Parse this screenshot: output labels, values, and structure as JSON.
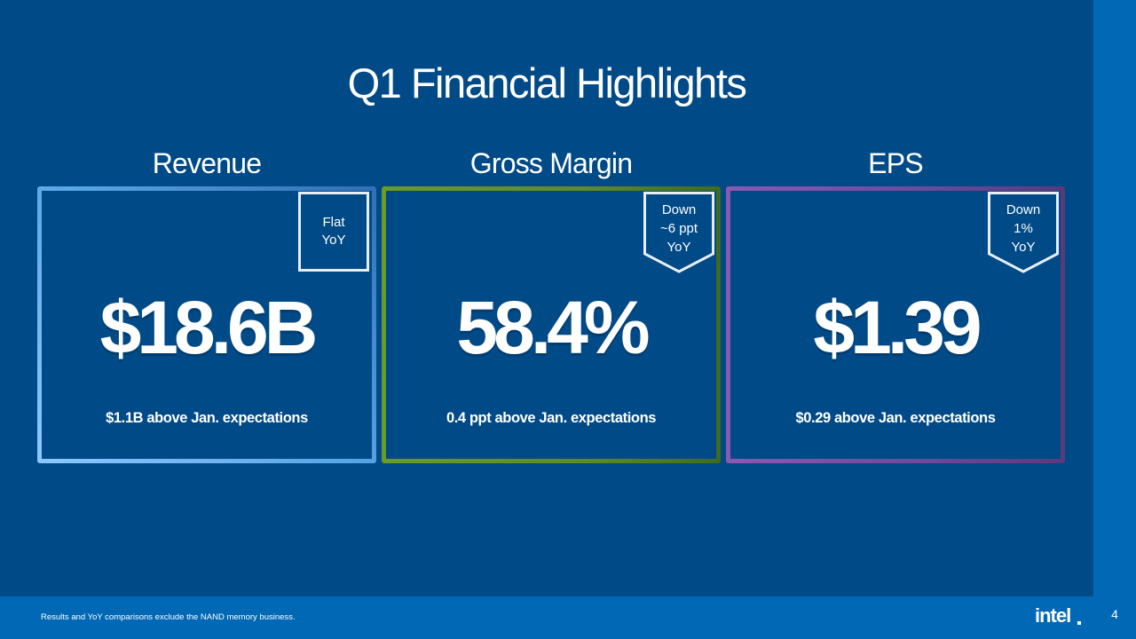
{
  "title": "Q1 Financial Highlights",
  "metrics": [
    {
      "heading": "Revenue",
      "value": "$18.6B",
      "subtitle": "$1.1B above Jan. expectations",
      "badge": [
        "Flat",
        "YoY"
      ],
      "badge_shape": "square",
      "accent_color": "#5aa6e6"
    },
    {
      "heading": "Gross Margin",
      "value": "58.4%",
      "subtitle": "0.4 ppt above Jan. expectations",
      "badge": [
        "Down",
        "~6 ppt",
        "YoY"
      ],
      "badge_shape": "shield",
      "accent_color": "#6a9a2a"
    },
    {
      "heading": "EPS",
      "value": "$1.39",
      "subtitle": "$0.29 above Jan. expectations",
      "badge": [
        "Down",
        "1%",
        "YoY"
      ],
      "badge_shape": "shield",
      "accent_color": "#8a5ab0"
    }
  ],
  "footer": {
    "note": "Results and YoY comparisons exclude the NAND memory business.",
    "logo": "intel",
    "page_number": "4"
  },
  "colors": {
    "background": "#004a87",
    "footer_bar": "#0068b5",
    "text": "#ffffff"
  }
}
